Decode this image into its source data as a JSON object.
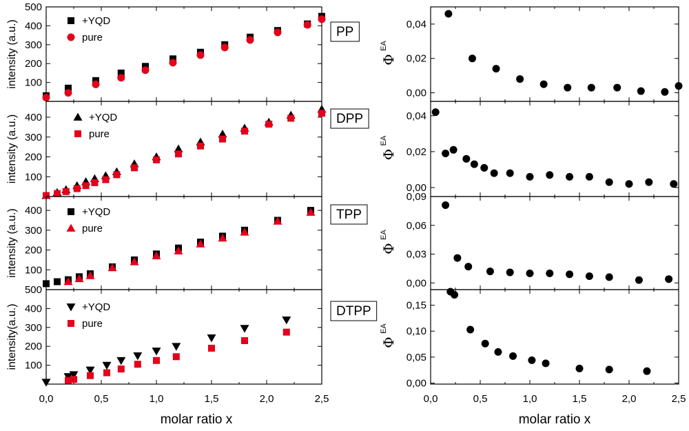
{
  "chart_data": {
    "type": "scatter",
    "xlabel": "molar ratio x",
    "x_range": [
      0.0,
      2.5
    ],
    "x_ticks": [
      "0,0",
      "0,5",
      "1,0",
      "1,5",
      "2,0",
      "2,5"
    ],
    "rows": [
      {
        "label": "PP",
        "left": {
          "ylabel": "intensity (a.u.)",
          "ylim": [
            0,
            500
          ],
          "y_ticks": [
            {
              "value": 100,
              "label": "100"
            },
            {
              "value": 200,
              "label": "200"
            },
            {
              "value": 300,
              "label": "300"
            },
            {
              "value": 400,
              "label": "400"
            },
            {
              "value": 500,
              "label": "500"
            }
          ],
          "series": [
            {
              "name": "+YQD",
              "marker": "square",
              "color": "#000000",
              "x": [
                0.0,
                0.2,
                0.45,
                0.68,
                0.9,
                1.15,
                1.4,
                1.62,
                1.85,
                2.1,
                2.37,
                2.5
              ],
              "y": [
                30,
                70,
                110,
                150,
                185,
                225,
                260,
                300,
                340,
                375,
                410,
                450
              ]
            },
            {
              "name": "pure",
              "marker": "circle",
              "color": "#e3001b",
              "x": [
                0.0,
                0.2,
                0.45,
                0.68,
                0.9,
                1.15,
                1.4,
                1.62,
                1.85,
                2.1,
                2.37,
                2.5
              ],
              "y": [
                20,
                45,
                90,
                125,
                165,
                205,
                245,
                285,
                325,
                365,
                405,
                435
              ]
            }
          ]
        },
        "right": {
          "ylabel": "Φ",
          "ylabel_sup": "EA",
          "ylim": [
            -0.005,
            0.05
          ],
          "y_ticks": [
            {
              "value": 0.0,
              "label": "0,00"
            },
            {
              "value": 0.02,
              "label": "0,02"
            },
            {
              "value": 0.04,
              "label": "0,04"
            }
          ],
          "points": {
            "x": [
              0.18,
              0.42,
              0.66,
              0.9,
              1.14,
              1.38,
              1.62,
              1.88,
              2.12,
              2.36,
              2.5
            ],
            "y": [
              0.046,
              0.02,
              0.014,
              0.008,
              0.005,
              0.003,
              0.003,
              0.003,
              0.001,
              0.0005,
              0.004
            ]
          }
        }
      },
      {
        "label": "DPP",
        "left": {
          "ylabel": "intensity (a.u.)",
          "ylim": [
            0,
            480
          ],
          "y_ticks": [
            {
              "value": 100,
              "label": "100"
            },
            {
              "value": 200,
              "label": "200"
            },
            {
              "value": 300,
              "label": "300"
            },
            {
              "value": 400,
              "label": "400"
            }
          ],
          "series": [
            {
              "name": "+YQD",
              "marker": "triangle-up",
              "color": "#000000",
              "x": [
                0.0,
                0.1,
                0.18,
                0.28,
                0.36,
                0.44,
                0.54,
                0.64,
                0.8,
                1.0,
                1.2,
                1.4,
                1.6,
                1.8,
                2.02,
                2.22,
                2.5
              ],
              "y": [
                5,
                20,
                35,
                55,
                75,
                90,
                105,
                125,
                165,
                200,
                240,
                275,
                315,
                345,
                375,
                410,
                440
              ]
            },
            {
              "name": "pure",
              "marker": "square",
              "color": "#e3001b",
              "x": [
                0.0,
                0.1,
                0.18,
                0.28,
                0.36,
                0.44,
                0.54,
                0.64,
                0.8,
                1.0,
                1.2,
                1.4,
                1.6,
                1.8,
                2.02,
                2.22,
                2.5
              ],
              "y": [
                5,
                15,
                25,
                40,
                55,
                70,
                85,
                110,
                145,
                185,
                215,
                255,
                290,
                330,
                365,
                395,
                420
              ]
            }
          ]
        },
        "right": {
          "ylabel": "Φ",
          "ylabel_sup": "EA",
          "ylim": [
            -0.005,
            0.048
          ],
          "y_ticks": [
            {
              "value": 0.0,
              "label": "0,00"
            },
            {
              "value": 0.02,
              "label": "0,02"
            },
            {
              "value": 0.04,
              "label": "0,04"
            }
          ],
          "points": {
            "x": [
              0.05,
              0.15,
              0.23,
              0.36,
              0.44,
              0.54,
              0.64,
              0.8,
              1.0,
              1.2,
              1.4,
              1.6,
              1.8,
              2.0,
              2.2,
              2.45
            ],
            "y": [
              0.042,
              0.019,
              0.021,
              0.016,
              0.013,
              0.011,
              0.008,
              0.008,
              0.006,
              0.007,
              0.006,
              0.006,
              0.003,
              0.002,
              0.003,
              0.002
            ]
          }
        }
      },
      {
        "label": "TPP",
        "left": {
          "ylabel": "intensity (a.u.)",
          "ylim": [
            0,
            470
          ],
          "y_ticks": [
            {
              "value": 100,
              "label": "100"
            },
            {
              "value": 200,
              "label": "200"
            },
            {
              "value": 300,
              "label": "300"
            },
            {
              "value": 400,
              "label": "400"
            }
          ],
          "series": [
            {
              "name": "+YQD",
              "marker": "square",
              "color": "#000000",
              "x": [
                0.0,
                0.1,
                0.2,
                0.3,
                0.4,
                0.6,
                0.8,
                1.0,
                1.2,
                1.4,
                1.6,
                1.8,
                2.1,
                2.4
              ],
              "y": [
                30,
                40,
                50,
                65,
                80,
                115,
                150,
                180,
                210,
                240,
                270,
                300,
                350,
                400
              ]
            },
            {
              "name": "pure",
              "marker": "triangle-up",
              "color": "#e3001b",
              "x": [
                0.2,
                0.3,
                0.4,
                0.6,
                0.8,
                1.0,
                1.2,
                1.4,
                1.6,
                1.8,
                2.1,
                2.4
              ],
              "y": [
                40,
                55,
                70,
                110,
                140,
                170,
                195,
                230,
                260,
                290,
                345,
                390
              ]
            }
          ]
        },
        "right": {
          "ylabel": "Φ",
          "ylabel_sup": "EA",
          "ylim": [
            -0.007,
            0.09
          ],
          "y_ticks": [
            {
              "value": 0.0,
              "label": "0,00"
            },
            {
              "value": 0.03,
              "label": "0,03"
            },
            {
              "value": 0.06,
              "label": "0,06"
            },
            {
              "value": 0.09,
              "label": "0,09"
            }
          ],
          "points": {
            "x": [
              0.15,
              0.27,
              0.38,
              0.6,
              0.8,
              1.0,
              1.2,
              1.4,
              1.6,
              1.8,
              2.1,
              2.4
            ],
            "y": [
              0.081,
              0.026,
              0.017,
              0.012,
              0.011,
              0.01,
              0.01,
              0.009,
              0.007,
              0.006,
              0.003,
              0.004
            ]
          }
        }
      },
      {
        "label": "DTPP",
        "left": {
          "ylabel": "intensity(a.u.)",
          "ylim": [
            0,
            500
          ],
          "y_ticks": [
            {
              "value": 100,
              "label": "100"
            },
            {
              "value": 200,
              "label": "200"
            },
            {
              "value": 300,
              "label": "300"
            },
            {
              "value": 400,
              "label": "400"
            },
            {
              "value": 500,
              "label": "500"
            }
          ],
          "series": [
            {
              "name": "+YQD",
              "marker": "triangle-down",
              "color": "#000000",
              "x": [
                0.0,
                0.2,
                0.25,
                0.4,
                0.55,
                0.68,
                0.83,
                1.0,
                1.18,
                1.5,
                1.8,
                2.18
              ],
              "y": [
                10,
                40,
                50,
                75,
                100,
                125,
                150,
                175,
                200,
                245,
                295,
                340
              ]
            },
            {
              "name": "pure",
              "marker": "square",
              "color": "#e3001b",
              "x": [
                0.2,
                0.25,
                0.4,
                0.55,
                0.68,
                0.83,
                1.0,
                1.18,
                1.5,
                1.8,
                2.18
              ],
              "y": [
                20,
                25,
                45,
                60,
                80,
                105,
                125,
                145,
                190,
                230,
                275
              ]
            }
          ]
        },
        "right": {
          "ylabel": "Φ",
          "ylabel_sup": "EA",
          "ylim": [
            -0.002,
            0.18
          ],
          "y_ticks": [
            {
              "value": 0.0,
              "label": "0,00"
            },
            {
              "value": 0.05,
              "label": "0,05"
            },
            {
              "value": 0.1,
              "label": "0,10"
            },
            {
              "value": 0.15,
              "label": "0,15"
            }
          ],
          "points": {
            "x": [
              0.2,
              0.24,
              0.4,
              0.55,
              0.68,
              0.83,
              1.02,
              1.16,
              1.5,
              1.8,
              2.18
            ],
            "y": [
              0.176,
              0.17,
              0.103,
              0.076,
              0.06,
              0.052,
              0.044,
              0.038,
              0.028,
              0.026,
              0.023
            ]
          }
        }
      }
    ]
  }
}
